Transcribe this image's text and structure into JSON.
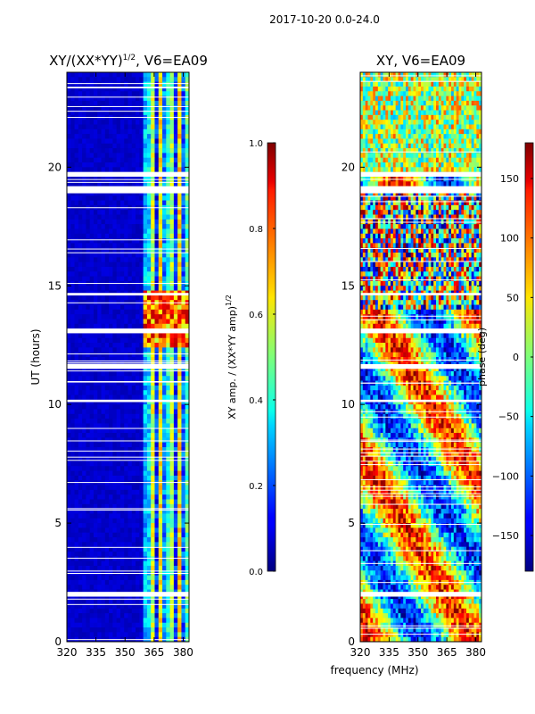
{
  "figure": {
    "suptitle": "2017-10-20 0.0-24.0",
    "shared_xlabel": "frequency (MHz)"
  },
  "chart_data": [
    {
      "type": "heatmap",
      "title_main": "XY/(XX*YY)",
      "title_sup": "1/2",
      "title_tail": ", V6=EA09",
      "xlabel": "frequency (MHz)",
      "ylabel": "UT (hours)",
      "xlim": [
        320,
        383
      ],
      "ylim": [
        0,
        24
      ],
      "xticks": [
        320,
        335,
        350,
        365,
        380
      ],
      "yticks": [
        0,
        5,
        10,
        15,
        20
      ],
      "colorbar": {
        "label_main": "XY amp. / (XX*YY amp)",
        "label_sup": "1/2",
        "range": [
          0.0,
          1.0
        ],
        "ticks": [
          "0.0",
          "0.2",
          "0.4",
          "0.6",
          "0.8",
          "1.0"
        ],
        "tick_values": [
          0.0,
          0.2,
          0.4,
          0.6,
          0.8,
          1.0
        ],
        "colormap": "jet"
      },
      "data_gaps_hours": [
        [
          1.9,
          2.1
        ],
        [
          13.0,
          13.2
        ],
        [
          14.6,
          14.7
        ],
        [
          11.5,
          11.7
        ],
        [
          18.9,
          19.2
        ],
        [
          19.6,
          19.8
        ],
        [
          10.1,
          10.2
        ]
      ],
      "description_values": {
        "background_level": 0.05,
        "band_365_382_level": 0.45,
        "band_365_382_peak_hours": [
          12.5,
          14.7
        ],
        "band_365_382_peak_level": 0.85
      }
    },
    {
      "type": "heatmap",
      "title_main": "XY, V6=EA09",
      "xlabel": "frequency (MHz)",
      "ylabel": "",
      "xlim": [
        320,
        383
      ],
      "ylim": [
        0,
        24
      ],
      "xticks": [
        320,
        335,
        350,
        365,
        380
      ],
      "yticks": [
        0,
        5,
        10,
        15,
        20
      ],
      "colorbar": {
        "label_main": "phase (deg)",
        "range": [
          -180,
          180
        ],
        "ticks": [
          "150",
          "100",
          "50",
          "0",
          "−50",
          "−100",
          "−150"
        ],
        "tick_values": [
          150,
          100,
          50,
          0,
          -50,
          -100,
          -150
        ],
        "colormap": "jet"
      },
      "data_gaps_hours": [
        [
          1.9,
          2.1
        ],
        [
          13.0,
          13.2
        ],
        [
          14.6,
          14.7
        ],
        [
          11.5,
          11.7
        ],
        [
          18.9,
          19.2
        ],
        [
          19.6,
          19.8
        ],
        [
          10.1,
          10.2
        ]
      ]
    }
  ]
}
